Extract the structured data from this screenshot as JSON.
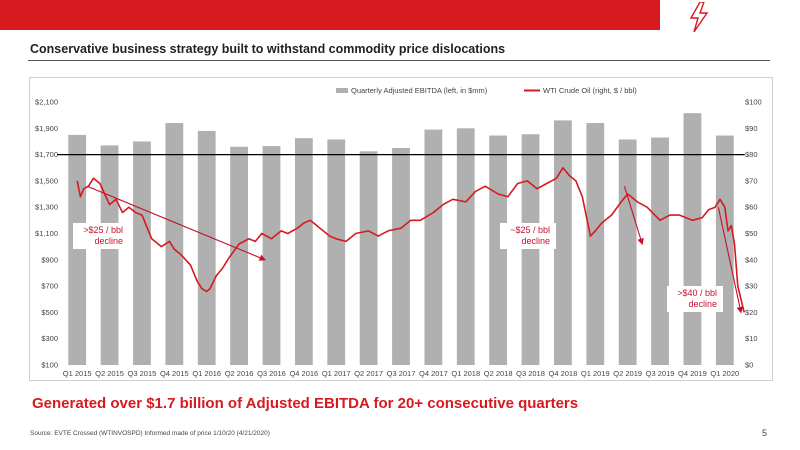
{
  "slide": {
    "title": "Conservative business strategy built to withstand commodity price dislocations",
    "headline": "Generated over $1.7 billion of Adjusted EBITDA for 20+ consecutive quarters",
    "source": "Source: EVTE Crossed (WTINVOSPD) Informed made of price 1/10/20 (4/21/2020)",
    "page_number": "5"
  },
  "colors": {
    "brand_red": "#d71920",
    "bar_gray": "#b0b0b0",
    "oil_red": "#d71920",
    "ref_line": "#000000"
  },
  "chart_data": {
    "type": "bar",
    "legend": [
      "Quarterly Adjusted EBITDA (left, in $mm)",
      "WTI Crude Oil (right, $ / bbl)"
    ],
    "legend_placement": "top-right",
    "categories": [
      "Q1 2015",
      "Q2 2015",
      "Q3 2015",
      "Q4 2015",
      "Q1 2016",
      "Q2 2016",
      "Q3 2016",
      "Q4 2016",
      "Q1 2017",
      "Q2 2017",
      "Q3 2017",
      "Q4 2017",
      "Q1 2018",
      "Q2 2018",
      "Q3 2018",
      "Q4 2018",
      "Q1 2019",
      "Q2 2019",
      "Q3 2019",
      "Q4 2019",
      "Q1 2020"
    ],
    "series": [
      {
        "name": "Quarterly Adjusted EBITDA (left, in $mm)",
        "axis": "left",
        "type": "bar",
        "values": [
          1850,
          1770,
          1800,
          1940,
          1880,
          1760,
          1765,
          1825,
          1815,
          1725,
          1750,
          1890,
          1900,
          1845,
          1855,
          1960,
          1940,
          1815,
          1830,
          2015,
          1845
        ]
      },
      {
        "name": "WTI Crude Oil (right, $ / bbl)",
        "axis": "right",
        "type": "line",
        "x": [
          0,
          0.1,
          0.2,
          0.35,
          0.5,
          0.7,
          0.85,
          1.0,
          1.2,
          1.4,
          1.6,
          1.8,
          2.0,
          2.3,
          2.6,
          2.85,
          3.0,
          3.2,
          3.5,
          3.7,
          3.85,
          4.0,
          4.1,
          4.3,
          4.5,
          4.7,
          5.0,
          5.3,
          5.5,
          5.7,
          6.0,
          6.3,
          6.5,
          6.8,
          7.0,
          7.2,
          7.5,
          7.8,
          8.0,
          8.3,
          8.6,
          9.0,
          9.3,
          9.6,
          10.0,
          10.3,
          10.6,
          11.0,
          11.3,
          11.6,
          12.0,
          12.3,
          12.6,
          13.0,
          13.3,
          13.6,
          13.9,
          14.2,
          14.5,
          14.8,
          15.0,
          15.2,
          15.4,
          15.6,
          15.75,
          15.85,
          16.0,
          16.2,
          16.5,
          16.8,
          17.0,
          17.3,
          17.6,
          18.0,
          18.3,
          18.6,
          19.0,
          19.3,
          19.5,
          19.7,
          19.85,
          20.0,
          20.1,
          20.2,
          20.3,
          20.4,
          20.5,
          20.6
        ],
        "values": [
          70,
          64,
          67,
          68,
          71,
          69,
          65,
          61,
          63,
          58,
          60,
          58,
          57,
          48,
          45,
          47,
          44,
          42,
          38,
          32,
          29,
          28,
          29,
          34,
          37,
          41,
          46,
          48,
          47,
          50,
          48,
          51,
          50,
          52,
          54,
          55,
          52,
          49,
          48,
          47,
          50,
          51,
          49,
          51,
          52,
          55,
          55,
          58,
          61,
          63,
          62,
          66,
          68,
          65,
          64,
          69,
          70,
          67,
          69,
          71,
          75,
          72,
          70,
          64,
          55,
          49,
          51,
          54,
          57,
          62,
          65,
          62,
          60,
          55,
          57,
          57,
          55,
          56,
          59,
          60,
          63,
          60,
          51,
          53,
          46,
          30,
          25,
          20
        ]
      }
    ],
    "y_left": {
      "min": 100,
      "max": 2100,
      "ticks": [
        "$100",
        "$300",
        "$500",
        "$700",
        "$900",
        "$1,100",
        "$1,300",
        "$1,500",
        "$1,700",
        "$1,900",
        "$2,100"
      ]
    },
    "y_right": {
      "min": 0,
      "max": 100,
      "ticks": [
        "$0",
        "$10",
        "$20",
        "$30",
        "$40",
        "$50",
        "$60",
        "$70",
        "$80",
        "$90",
        "$100"
      ]
    },
    "reference_line": {
      "value": 1700,
      "axis": "left"
    },
    "annotations": [
      {
        "lines": [
          ">$25 / bbl",
          "decline"
        ],
        "from": [
          0.3,
          68
        ],
        "to": [
          5.8,
          40
        ]
      },
      {
        "lines": [
          "~$25 / bbl",
          "decline"
        ],
        "from": [
          16.9,
          68
        ],
        "to": [
          17.45,
          46
        ]
      },
      {
        "lines": [
          ">$40 / bbl",
          "decline"
        ],
        "from": [
          19.8,
          60
        ],
        "to": [
          20.5,
          20
        ]
      }
    ],
    "grid": false
  }
}
